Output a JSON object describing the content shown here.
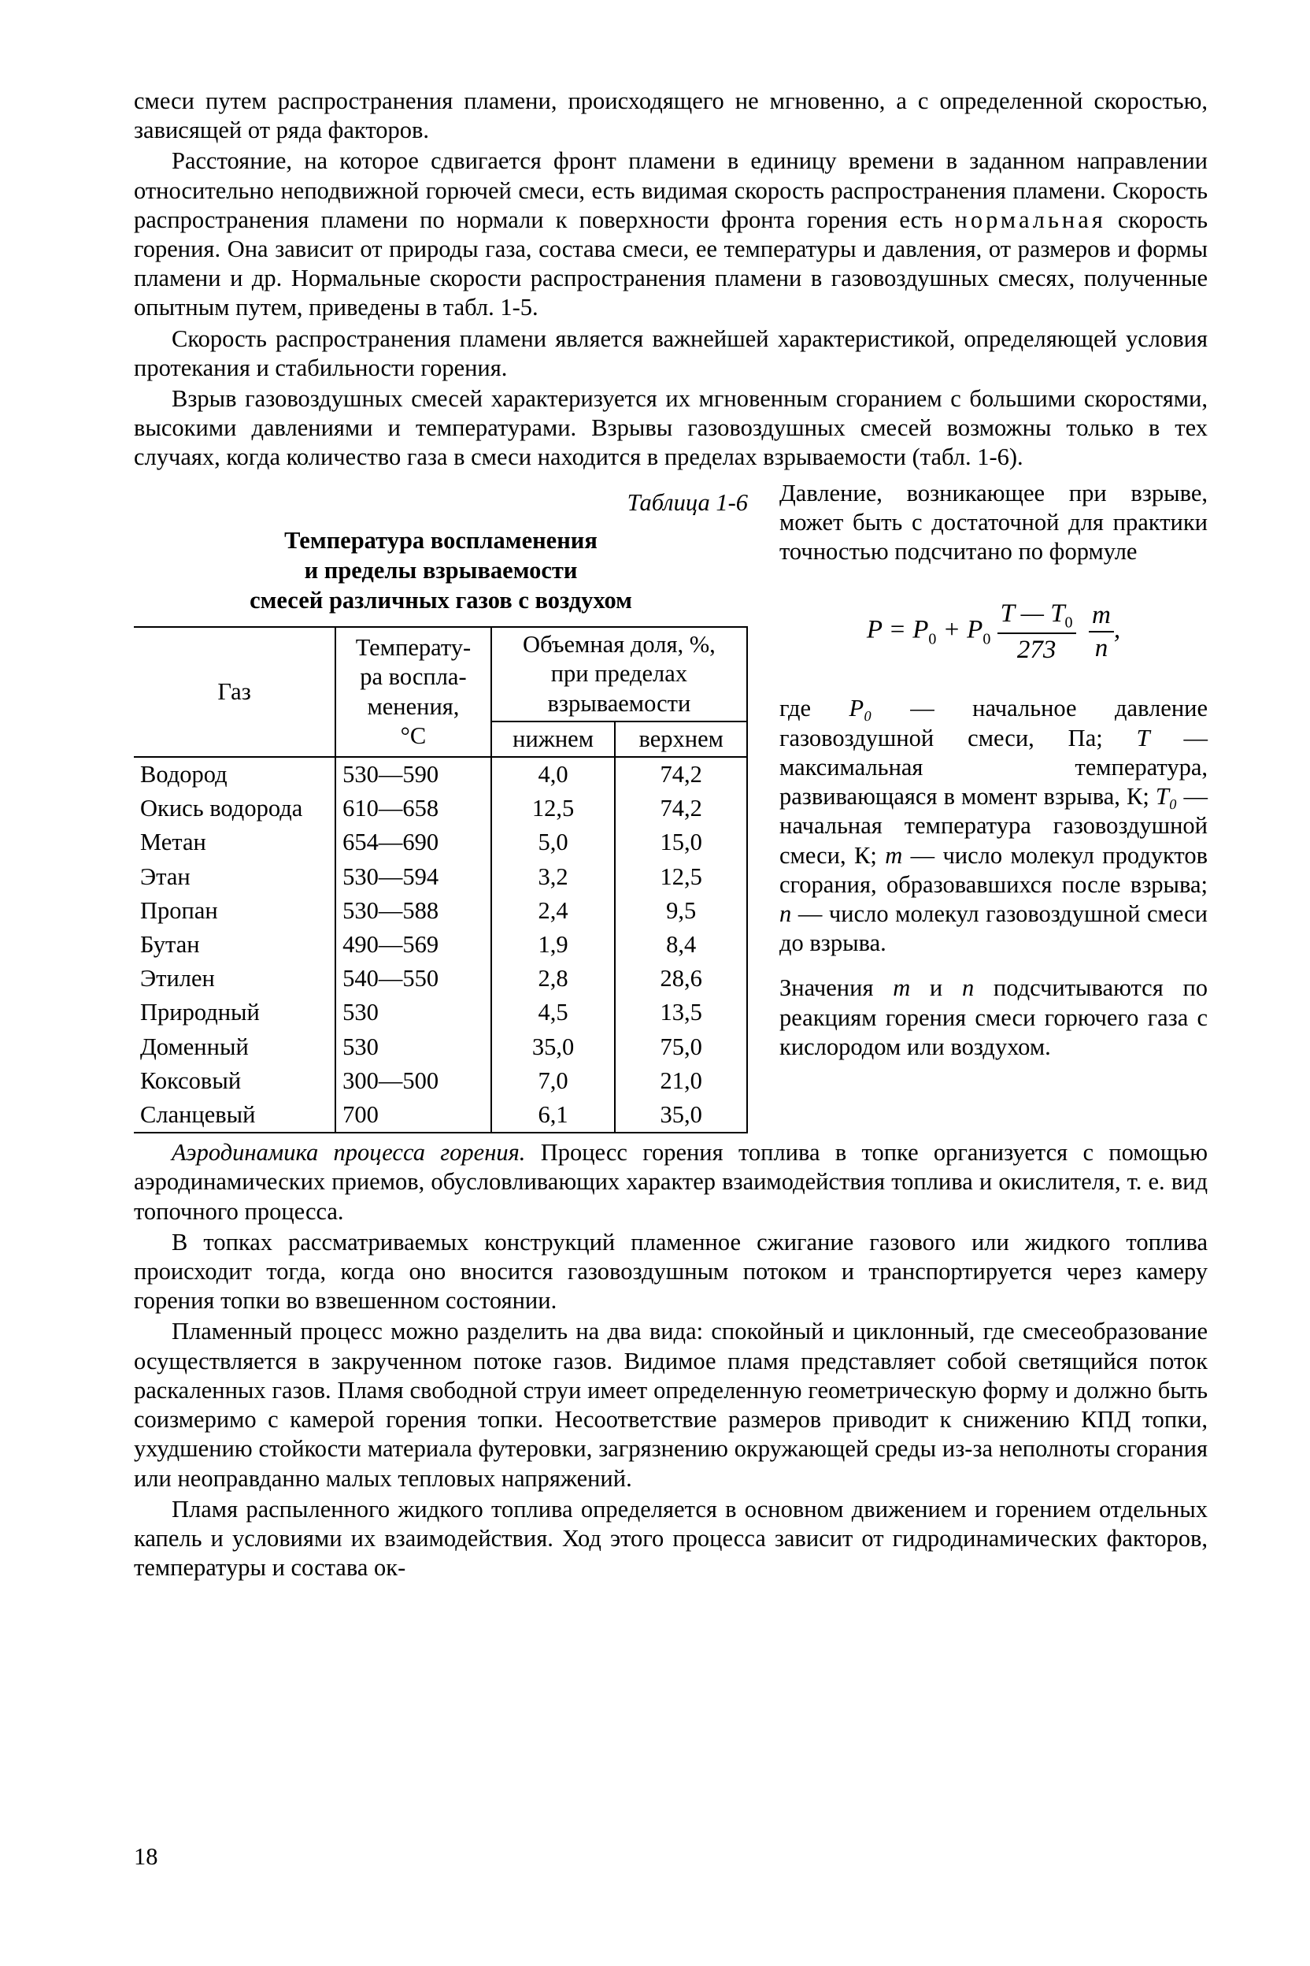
{
  "paragraphs": {
    "p1": "смеси путем распространения пламени, происходящего не мгновенно, а с определенной скоростью, зависящей от ряда факторов.",
    "p2a": "Расстояние, на которое сдвигается фронт пламени в единицу времени в заданном направлении относительно неподвижной горючей смеси, есть видимая скорость распространения пламени. Скорость распространения пламени по нормали к поверхности фронта горения есть ",
    "p2b": "нормальная",
    "p2c": " скорость горения. Она зависит от природы газа, состава смеси, ее температуры и давления, от размеров и формы пламени и др. Нормальные скорости распространения пламени в газовоздушных смесях, полученные опытным путем, приведены в табл. 1-5.",
    "p3": "Скорость распространения пламени является важнейшей характеристикой, определяющей условия протекания и стабильности горения.",
    "p4": "Взрыв газовоздушных смесей характеризуется их мгновенным сгоранием с большими скоростями, высокими давлениями и температурами. Взрывы газовоздушных смесей возможны только в тех случаях, когда количество газа в смеси находится в пределах взрываемости (табл. 1-6).",
    "p5": "Давление, возникающее при взрыве, может быть с достаточной для практики точностью подсчитано по формуле",
    "p6a": "где ",
    "p6b": " — начальное давление газовоздушной смеси, Па; ",
    "p6c": " — максимальная температура, развивающаяся в момент взрыва, К; ",
    "p6d": " — начальная температура газовоздушной смеси, К; ",
    "p6e": " — число молекул продуктов сгорания, образовавшихся после взрыва; ",
    "p6f": " — число молекул газовоздушной смеси до взрыва.",
    "p7": "Значения m и n подсчитываются по реакциям горения смеси горючего газа с кислородом или воздухом.",
    "p8a": "Аэродинамика процесса горения. ",
    "p8b": "Процесс горения топлива в топке организуется с помощью аэродинамических приемов, обусловливающих характер взаимодействия топлива и окислителя, т. е. вид топочного процесса.",
    "p9": "В топках рассматриваемых конструкций пламенное сжигание газового или жидкого топлива происходит тогда, когда оно вносится газовоздушным потоком и транспортируется через камеру горения топки во взвешенном состоянии.",
    "p10": "Пламенный процесс можно разделить на два вида: спокойный и циклонный, где смесеобразование осуществляется в закрученном потоке газов. Видимое пламя представляет собой светящийся поток раскаленных газов. Пламя свободной струи имеет определенную геометрическую форму и должно быть соизмеримо с камерой горения топки. Несоответствие размеров приводит к снижению КПД топки, ухудшению стойкости материала футеровки, загрязнению окружающей среды из-за неполноты сгорания или неоправданно малых тепловых напряжений.",
    "p11": "Пламя распыленного жидкого топлива определяется в основном движением и горением отдельных капель и условиями их взаимодействия. Ход этого процесса зависит от гидродинамических факторов, температуры и состава ок-"
  },
  "table": {
    "label": "Таблица 1-6",
    "title_l1": "Температура воспламенения",
    "title_l2": "и пределы взрываемости",
    "title_l3": "смесей различных газов с воздухом",
    "head": {
      "gas": "Газ",
      "temp1": "Температу-",
      "temp2": "ра воспла-",
      "temp3": "менения,",
      "temp4": "°С",
      "vol1": "Объемная доля, %,",
      "vol2": "при пределах",
      "vol3": "взрываемости",
      "lo": "нижнем",
      "hi": "верхнем"
    },
    "rows": [
      {
        "gas": "Водород",
        "temp": "530—590",
        "lo": "4,0",
        "hi": "74,2",
        "grp": 0
      },
      {
        "gas": "Окись водорода",
        "temp": "610—658",
        "lo": "12,5",
        "hi": "74,2",
        "grp": 0
      },
      {
        "gas": "Метан",
        "temp": "654—690",
        "lo": "5,0",
        "hi": "15,0",
        "grp": 1
      },
      {
        "gas": "Этан",
        "temp": "530—594",
        "lo": "3,2",
        "hi": "12,5",
        "grp": 1
      },
      {
        "gas": "Пропан",
        "temp": "530—588",
        "lo": "2,4",
        "hi": "9,5",
        "grp": 2
      },
      {
        "gas": "Бутан",
        "temp": "490—569",
        "lo": "1,9",
        "hi": "8,4",
        "grp": 2
      },
      {
        "gas": "Этилен",
        "temp": "540—550",
        "lo": "2,8",
        "hi": "28,6",
        "grp": 2
      },
      {
        "gas": "Природный",
        "temp": "530",
        "lo": "4,5",
        "hi": "13,5",
        "grp": 3
      },
      {
        "gas": "Доменный",
        "temp": "530",
        "lo": "35,0",
        "hi": "75,0",
        "grp": 3
      },
      {
        "gas": "Коксовый",
        "temp": "300—500",
        "lo": "7,0",
        "hi": "21,0",
        "grp": 4
      },
      {
        "gas": "Сланцевый",
        "temp": "700",
        "lo": "6,1",
        "hi": "35,0",
        "grp": 4
      }
    ]
  },
  "formula": {
    "P": "P",
    "eq": " = ",
    "P0": "P",
    "plus": " + ",
    "T": "T",
    "minus": " — ",
    "T0": "T",
    "den1": "273",
    "m": "m",
    "n": "n",
    "comma": ","
  },
  "vars": {
    "P0": "P₀",
    "T": "T",
    "T0": "T₀",
    "m": "m",
    "n": "n"
  },
  "pagenum": "18"
}
